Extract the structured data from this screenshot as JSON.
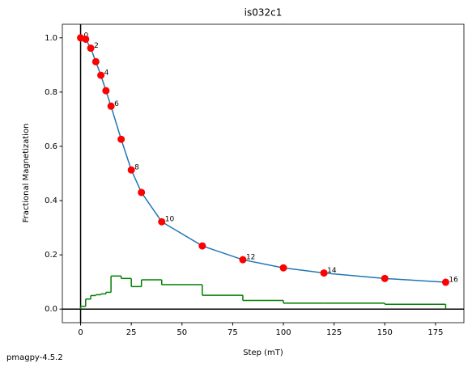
{
  "chart_data": {
    "type": "line",
    "title": "is032c1",
    "x_label": "Step (mT)",
    "y_label": "Fractional Magnetization",
    "footer": "pmagpy-4.5.2",
    "xlim": [
      -9,
      189
    ],
    "ylim": [
      -0.05,
      1.05
    ],
    "xticks": [
      0,
      25,
      50,
      75,
      100,
      125,
      150,
      175
    ],
    "yticks": [
      {
        "value": 0,
        "label": "0.0"
      },
      {
        "value": 0.2,
        "label": "0.2"
      },
      {
        "value": 0.4,
        "label": "0.4"
      },
      {
        "value": 0.6,
        "label": "0.6"
      },
      {
        "value": 0.8,
        "label": "0.8"
      },
      {
        "value": 1.0,
        "label": "1.0"
      }
    ],
    "x": [
      0,
      2.5,
      5,
      7.5,
      10,
      12.5,
      15,
      20,
      25,
      30,
      40,
      60,
      80,
      100,
      120,
      150,
      180
    ],
    "series": [
      {
        "color": "#1f77b4",
        "marker_color": "#ff0000",
        "values": [
          1.0,
          0.995,
          0.962,
          0.912,
          0.862,
          0.805,
          0.748,
          0.626,
          0.513,
          0.43,
          0.322,
          0.233,
          0.182,
          0.152,
          0.133,
          0.113,
          0.099
        ],
        "point_labels": [
          0,
          null,
          2,
          null,
          4,
          null,
          6,
          null,
          8,
          null,
          10,
          null,
          12,
          null,
          14,
          null,
          16
        ]
      }
    ],
    "steps": {
      "color": "#008000",
      "bins": [
        0,
        2.5,
        5,
        7.5,
        10,
        12.5,
        15,
        20,
        25,
        30,
        40,
        60,
        80,
        100,
        120,
        150,
        180
      ],
      "values": [
        0.01,
        0.037,
        0.05,
        0.053,
        0.056,
        0.062,
        0.122,
        0.113,
        0.083,
        0.108,
        0.09,
        0.051,
        0.032,
        0.022,
        0.022,
        0.018
      ]
    }
  }
}
